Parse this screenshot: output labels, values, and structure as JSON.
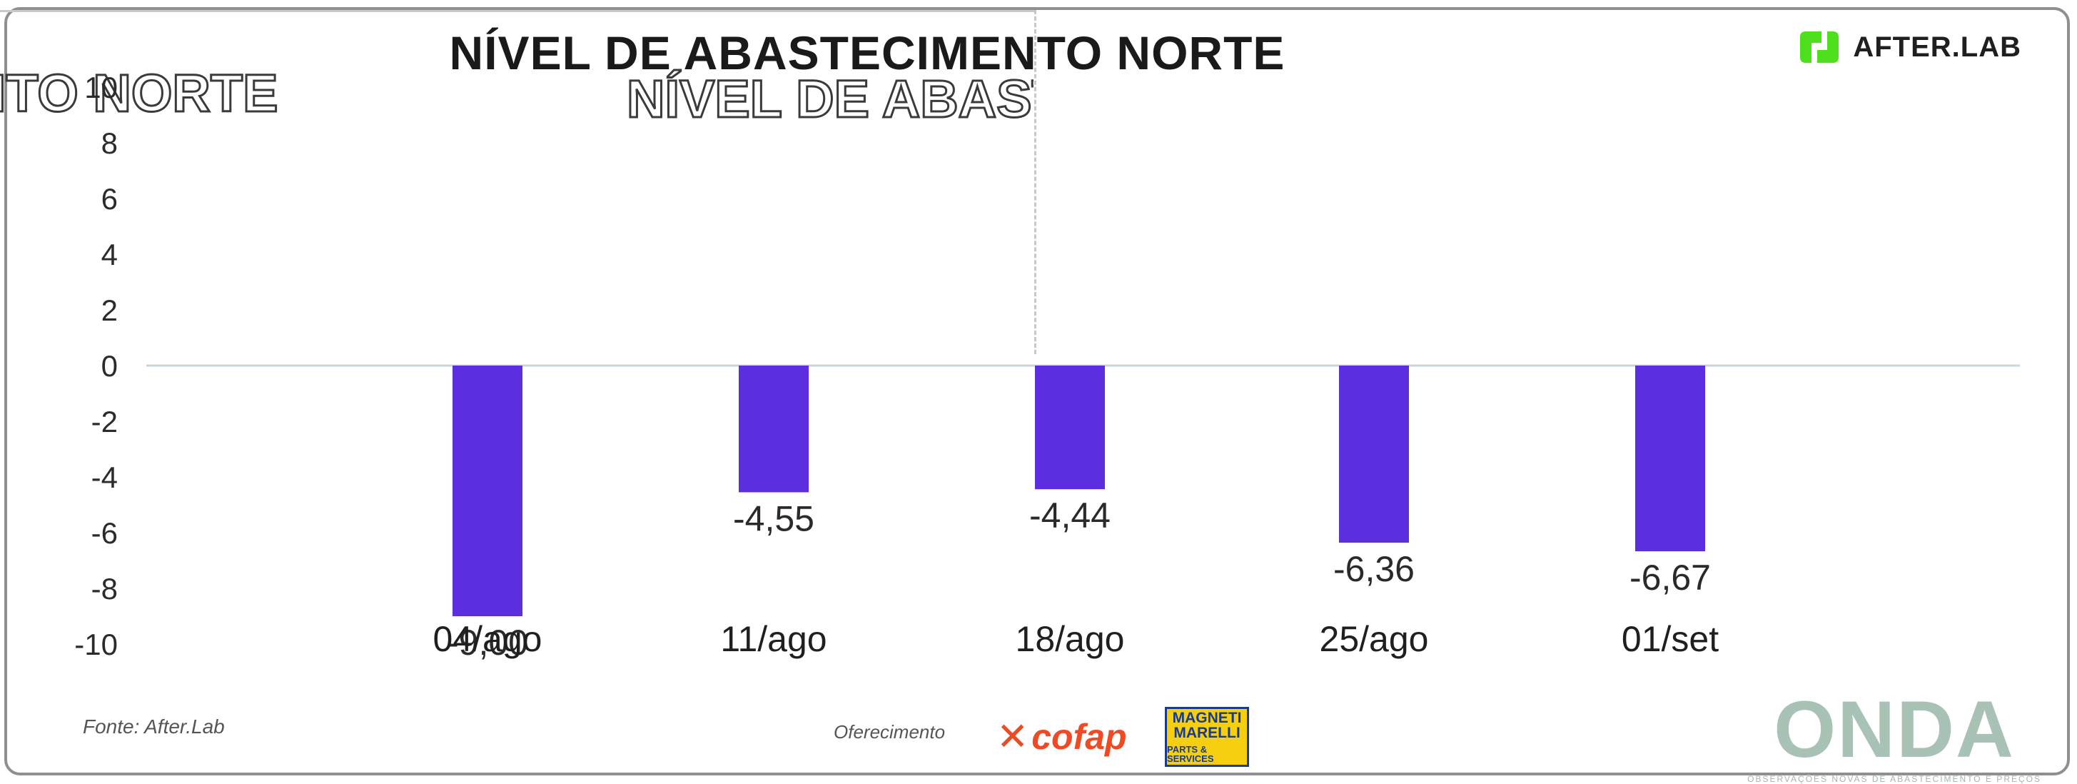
{
  "chart_data": {
    "type": "bar",
    "title": "NÍVEL DE ABASTECIMENTO NORTE",
    "categories": [
      "04/ago",
      "11/ago",
      "18/ago",
      "25/ago",
      "01/set"
    ],
    "series": [
      {
        "values": [
          -9.0,
          -4.55,
          -4.44,
          -6.36,
          -6.67
        ],
        "value_labels": [
          "-9,00",
          "-4,55",
          "-4,44",
          "-6,36",
          "-6,67"
        ],
        "color": "#5b2fe0"
      }
    ],
    "xlabel": "",
    "ylabel": "",
    "ylim": [
      -10,
      10
    ],
    "yticks": [
      -10,
      -8,
      -6,
      -4,
      -2,
      0,
      2,
      4,
      6,
      8,
      10
    ],
    "ytick_labels": [
      "-10",
      "-8",
      "-6",
      "-4",
      "-2",
      "0",
      "2",
      "4",
      "6",
      "8",
      "10"
    ],
    "grid": false,
    "zero_line": true,
    "legend": "none",
    "bar_color": "#5b2fe0",
    "zero_line_color": "#c9d6dc"
  },
  "ghost_text": {
    "left": "CIMENTO NORTE",
    "right": "NÍVEL DE ABAST"
  },
  "brand": {
    "name": "AFTER.LAB",
    "color": "#4ee01c"
  },
  "footer": {
    "source": "Fonte: After.Lab",
    "offer": "Oferecimento",
    "cofap": "cofap",
    "mm_line1": "MAGNETI",
    "mm_line2": "MARELLI",
    "mm_line3": "PARTS & SERVICES",
    "onda": "ONDA",
    "onda_sub": "OBSERVAÇÕES NOVAS DE ABASTECIMENTO E PREÇOS"
  }
}
